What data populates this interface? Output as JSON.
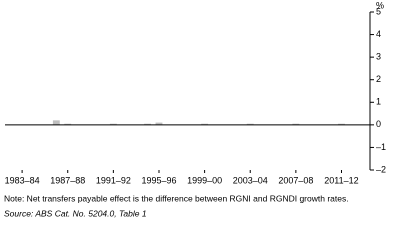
{
  "chart_data": {
    "type": "bar",
    "unit": "%",
    "categories": [
      null,
      "1983–84",
      null,
      null,
      null,
      "1987–88",
      null,
      null,
      null,
      "1991–92",
      null,
      null,
      null,
      "1995–96",
      null,
      null,
      null,
      "1999–00",
      null,
      null,
      null,
      "2003–04",
      null,
      null,
      null,
      "2007–08",
      null,
      null,
      null,
      "2011–12",
      null,
      null
    ],
    "values": [
      0,
      0,
      0,
      0,
      0.2,
      0.05,
      0,
      0,
      0,
      0.05,
      0,
      0,
      0.05,
      0.1,
      0,
      0,
      0,
      0.05,
      0,
      0,
      0,
      0.05,
      0,
      0,
      0,
      0.05,
      0,
      0,
      0,
      0.05,
      0,
      0
    ],
    "color": "#bfbfbf",
    "ylim": [
      -2,
      5
    ],
    "yticks": [
      {
        "value": -2,
        "label": "–2"
      },
      {
        "value": -1,
        "label": "–1"
      },
      0,
      1,
      2,
      3,
      4,
      5
    ],
    "note": "Note: Net transfers payable effect is the difference between RGNI and RGNDI growth rates.",
    "source": "Source: ABS Cat. No. 5204.0, Table 1"
  }
}
